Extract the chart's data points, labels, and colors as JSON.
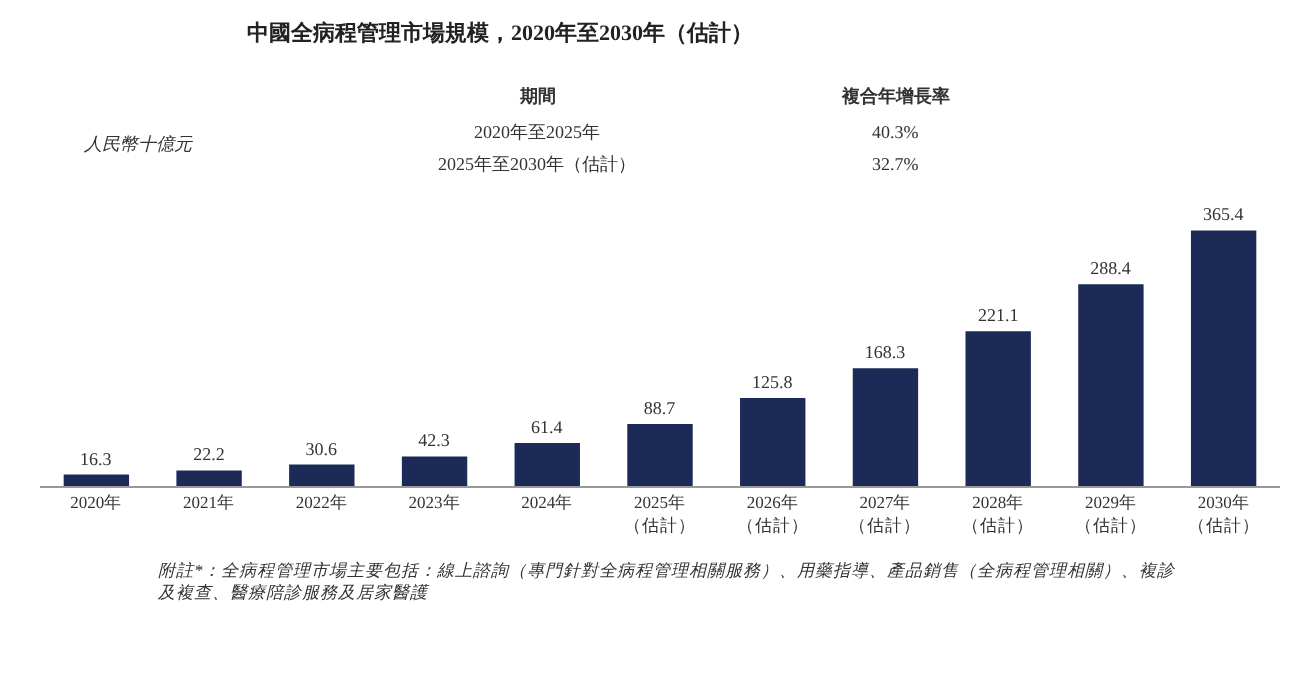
{
  "chart_data": {
    "type": "bar",
    "title": "中國全病程管理市場規模，2020年至2030年（估計）",
    "categories": [
      "2020年",
      "2021年",
      "2022年",
      "2023年",
      "2024年",
      "2025年（估計）",
      "2026年（估計）",
      "2027年（估計）",
      "2028年（估計）",
      "2029年（估計）",
      "2030年（估計）"
    ],
    "values": [
      16.3,
      22.2,
      30.6,
      42.3,
      61.4,
      88.7,
      125.8,
      168.3,
      221.1,
      288.4,
      365.4
    ],
    "color": "#1b2a56",
    "data_labels": true,
    "tick_labels": "x",
    "annotations": [
      "人民幣十億元",
      "期間",
      "複合年增長率",
      "2020年至2025年",
      "40.3%",
      "2025年至2030年（估計）",
      "32.7%",
      "附註*：全病程管理市場主要包括：線上諮詢（專門針對全病程管理相關服務）、用藥指導、產品銷售（全病程管理相關）、複診及複查、醫療陪診服務及居家醫護"
    ]
  }
}
